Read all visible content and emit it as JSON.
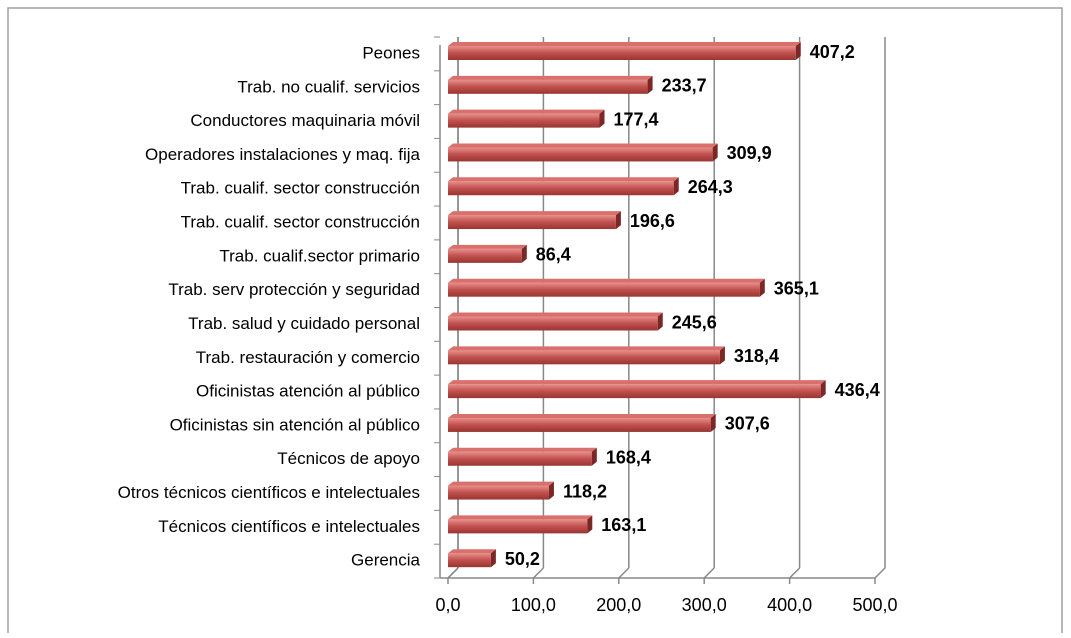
{
  "chart_data": {
    "type": "bar",
    "orientation": "horizontal",
    "categories": [
      "Peones",
      "Trab. no cualif. servicios",
      "Conductores maquinaria móvil",
      "Operadores instalaciones y maq. fija",
      "Trab. cualif. sector construcción",
      "Trab. cualif. sector construcción",
      "Trab. cualif.sector primario",
      "Trab. serv protección y seguridad",
      "Trab. salud y cuidado personal",
      "Trab. restauración y comercio",
      "Oficinistas atención al público",
      "Oficinistas sin atención al público",
      "Técnicos de apoyo",
      "Otros técnicos científicos e intelectuales",
      "Técnicos científicos e intelectuales",
      "Gerencia"
    ],
    "values": [
      407.2,
      233.7,
      177.4,
      309.9,
      264.3,
      196.6,
      86.4,
      365.1,
      245.6,
      318.4,
      436.4,
      307.6,
      168.4,
      118.2,
      163.1,
      50.2
    ],
    "value_labels": [
      "407,2",
      "233,7",
      "177,4",
      "309,9",
      "264,3",
      "196,6",
      "86,4",
      "365,1",
      "245,6",
      "318,4",
      "436,4",
      "307,6",
      "168,4",
      "118,2",
      "163,1",
      "50,2"
    ],
    "color": "#c0504d",
    "xlim": [
      0,
      500
    ],
    "xticks": [
      {
        "value": 0,
        "label": "0,0"
      },
      {
        "value": 100,
        "label": "100,0"
      },
      {
        "value": 200,
        "label": "200,0"
      },
      {
        "value": 300,
        "label": "300,0"
      },
      {
        "value": 400,
        "label": "400,0"
      },
      {
        "value": 500,
        "label": "500,0"
      }
    ],
    "grid": true
  }
}
